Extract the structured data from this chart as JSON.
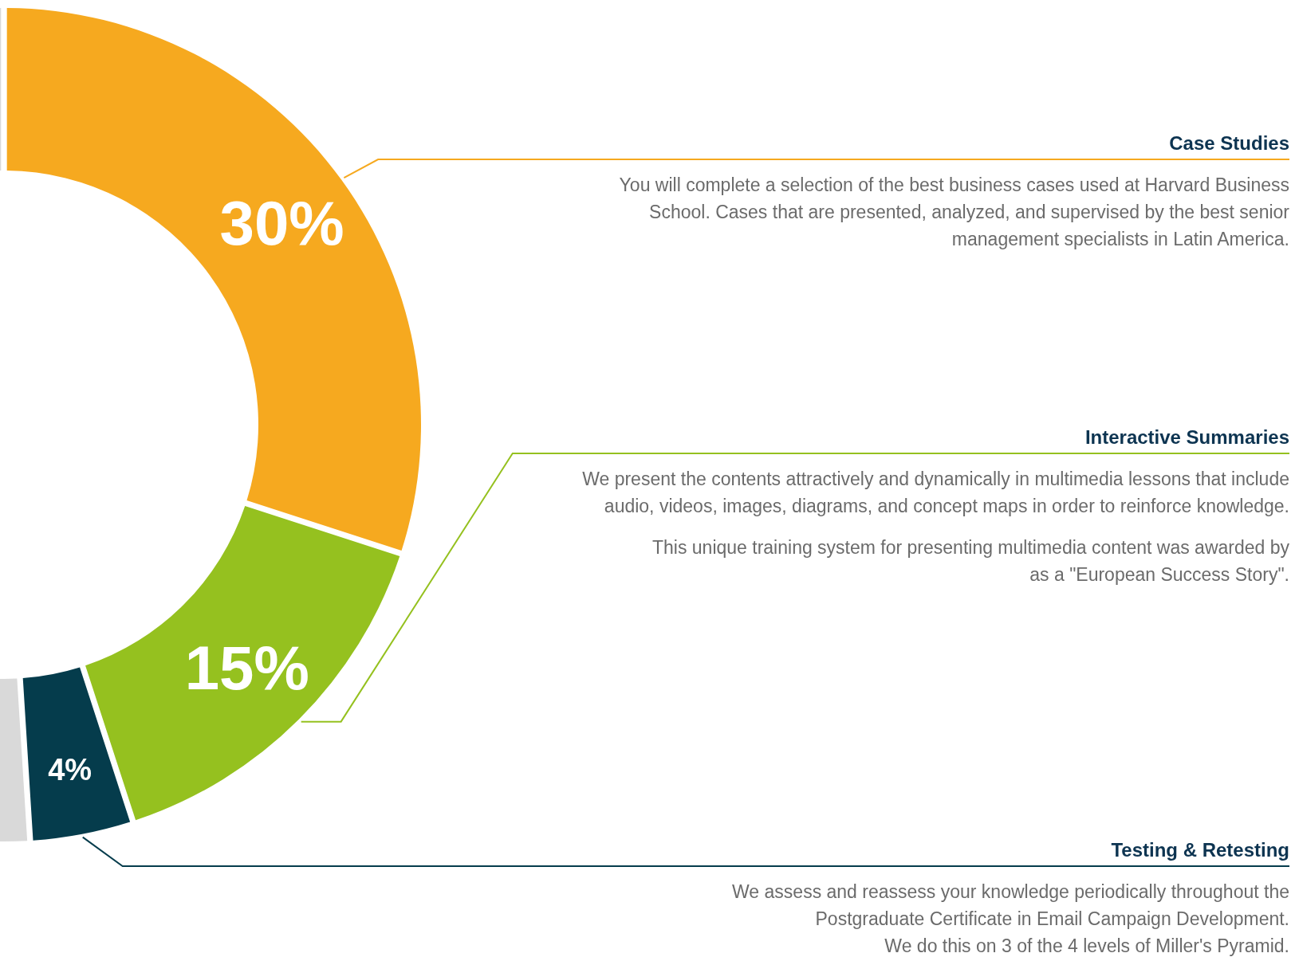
{
  "chart_data": {
    "type": "donut",
    "categories": [
      "Case Studies",
      "Interactive Summaries",
      "Testing & Retesting",
      null
    ],
    "values": [
      30,
      15,
      4,
      51
    ],
    "colors": [
      "#f6a91f",
      "#95c11f",
      "#053c4c",
      "#d9d9d9"
    ],
    "value_labels": [
      "30%",
      "15%",
      "4%",
      null
    ],
    "annotations": [
      "You will complete a selection of the best business cases used at Harvard Business\nSchool. Cases that are presented, analyzed, and supervised by the best senior\nmanagement specialists in Latin America.",
      "We present the contents attractively and dynamically in multimedia lessons that include\naudio, videos, images, diagrams, and concept maps in order to reinforce knowledge.\n\nThis unique training system for presenting multimedia content was awarded by\nas a \"European Success Story\".",
      "We assess and reassess your knowledge periodically throughout the\nPostgraduate Certificate in Email Campaign Development.\nWe do this on 3 of the 4 levels of Miller's Pyramid."
    ]
  }
}
